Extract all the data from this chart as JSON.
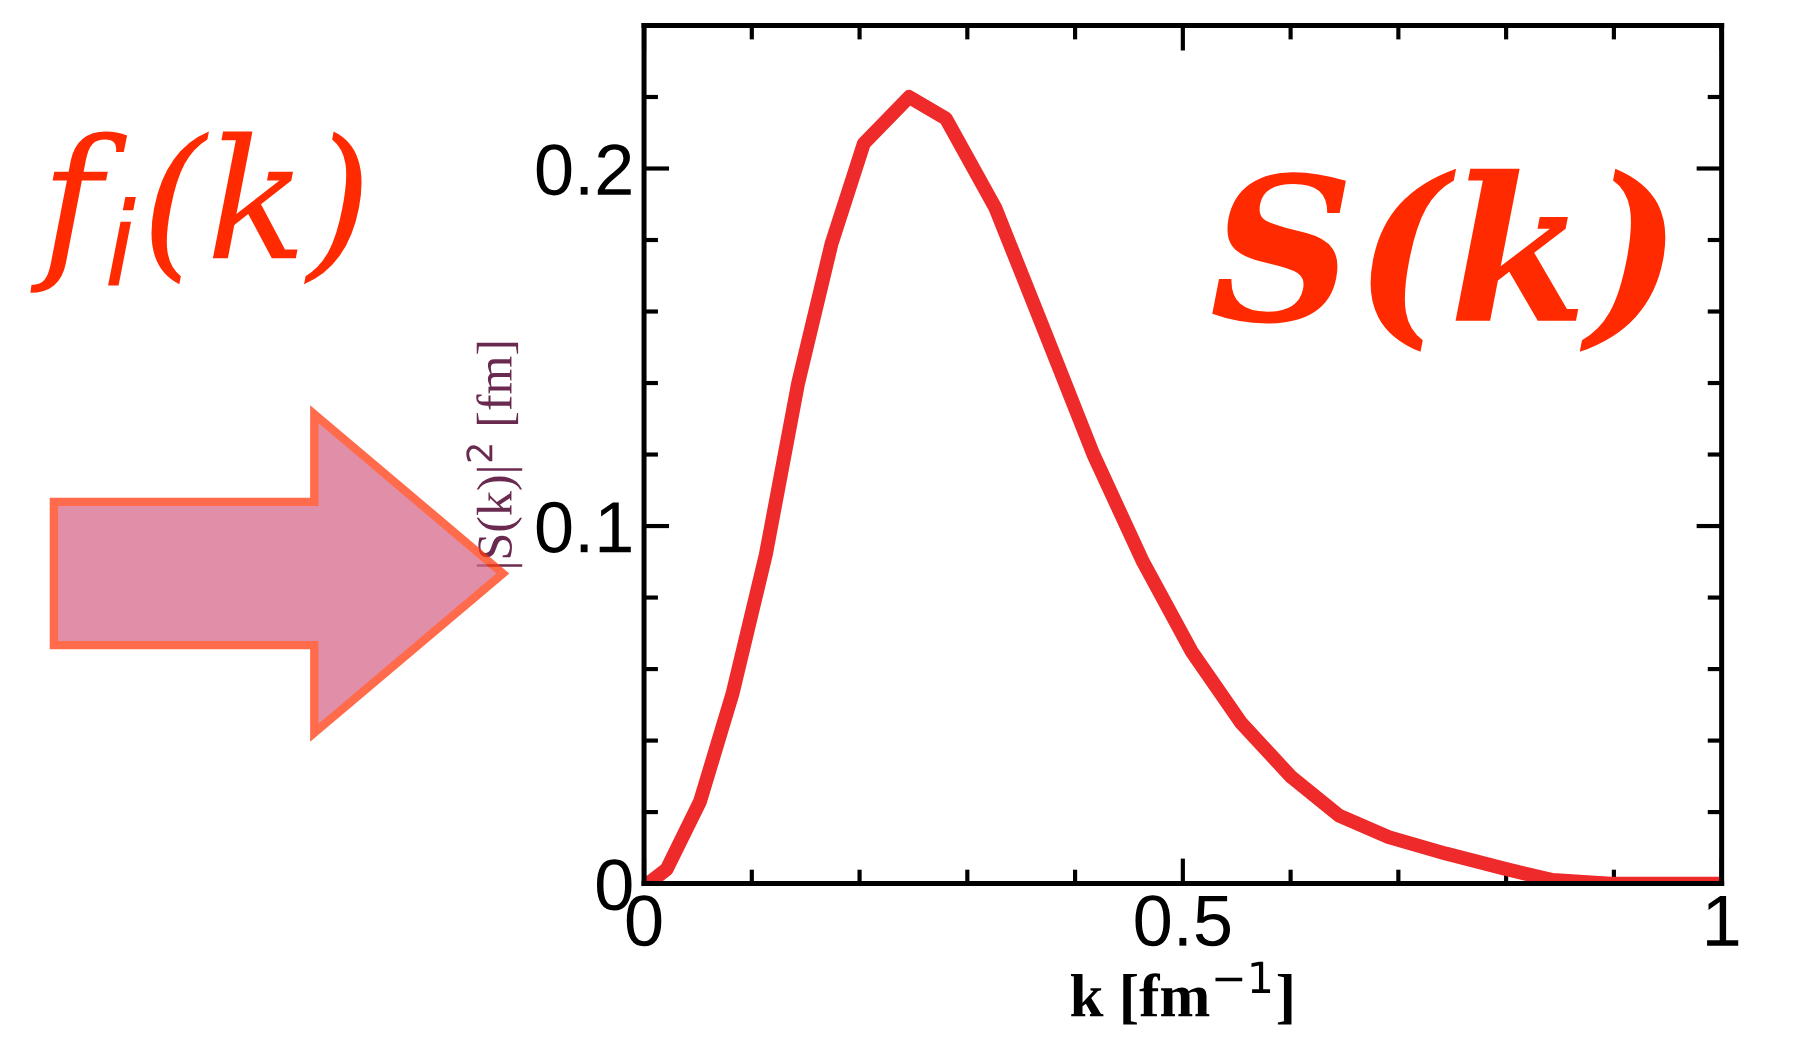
{
  "chart_data": {
    "type": "line",
    "xlabel": "k [fm$^{−1}$]",
    "ylabel": "|S(k)|$^{2}$ [fm]",
    "annotations": [
      "f$_{i}$(k)",
      "S(k)"
    ],
    "x": [
      0.0,
      0.006,
      0.021,
      0.052,
      0.082,
      0.113,
      0.143,
      0.174,
      0.204,
      0.246,
      0.28,
      0.326,
      0.371,
      0.417,
      0.463,
      0.508,
      0.554,
      0.6,
      0.645,
      0.691,
      0.744,
      0.798,
      0.843,
      0.897,
      0.95,
      1.0
    ],
    "series": [
      {
        "color": "#ee2a2a",
        "values": [
          0.0,
          0.0005,
          0.004,
          0.023,
          0.053,
          0.092,
          0.14,
          0.179,
          0.207,
          0.22,
          0.214,
          0.189,
          0.155,
          0.12,
          0.09,
          0.065,
          0.045,
          0.03,
          0.019,
          0.013,
          0.0084,
          0.0042,
          0.001,
          0.0,
          0.0,
          0.0
        ]
      }
    ],
    "xlim": [
      0,
      1
    ],
    "ylim": [
      0,
      0.24
    ],
    "xticks": [
      0,
      0.5,
      1
    ],
    "yticks": [
      0,
      0.1,
      0.2
    ],
    "grid": false,
    "legend": false,
    "marker": "none",
    "line_style": "solid"
  }
}
